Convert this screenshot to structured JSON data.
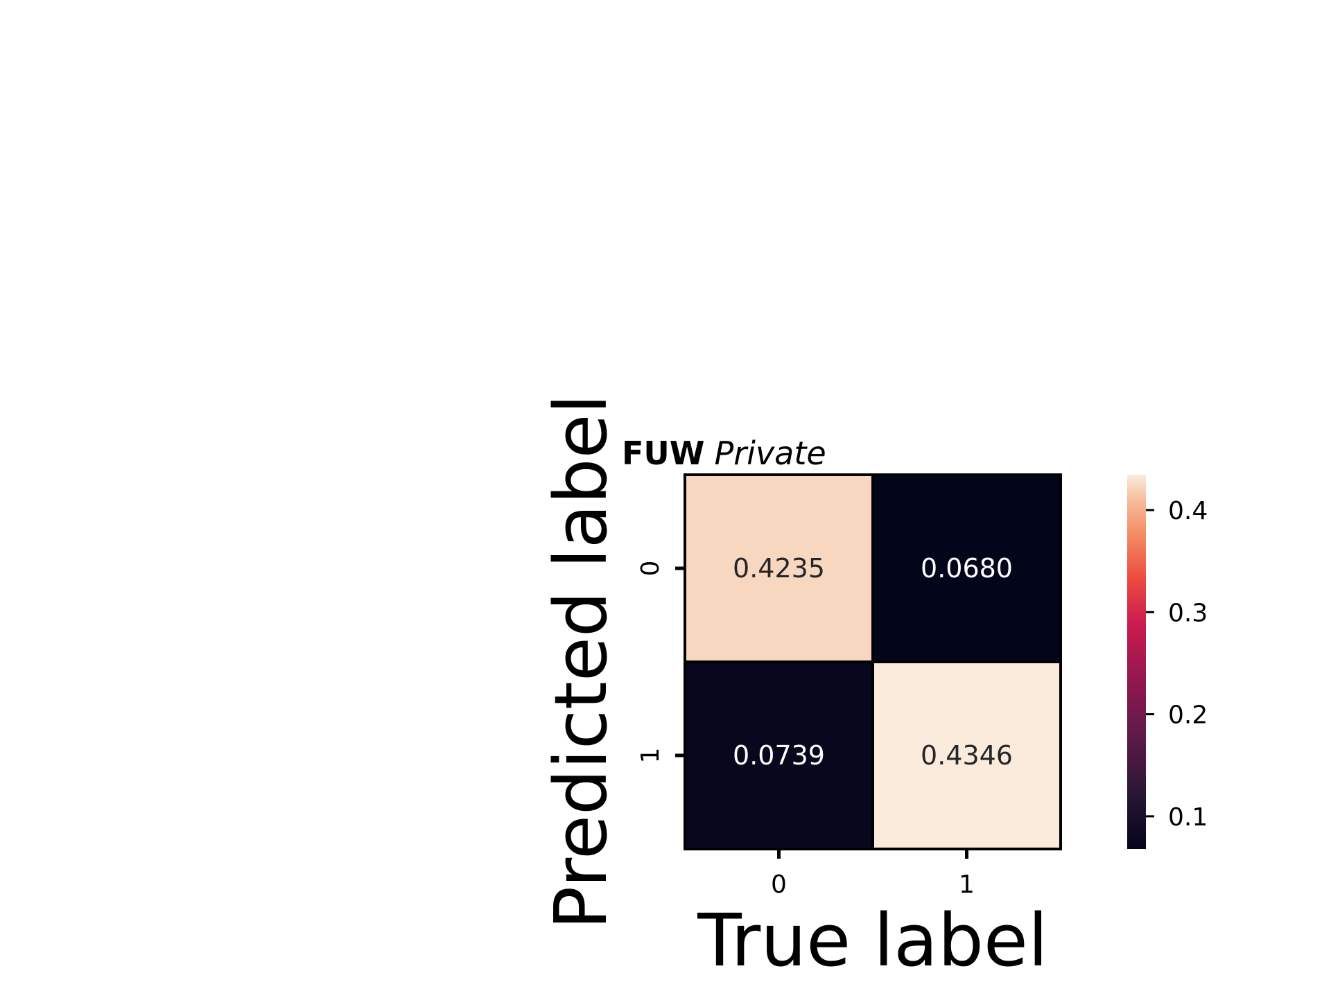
{
  "chart_data": {
    "type": "heatmap",
    "title_bold": "FUW",
    "title_italic": "Private",
    "xlabel": "True label",
    "ylabel": "Predicted label",
    "x_categories": [
      "0",
      "1"
    ],
    "y_categories": [
      "0",
      "1"
    ],
    "values": [
      [
        0.4235,
        0.068
      ],
      [
        0.0739,
        0.4346
      ]
    ],
    "cell_labels": [
      [
        "0.4235",
        "0.0680"
      ],
      [
        "0.0739",
        "0.4346"
      ]
    ],
    "colorbar": {
      "range": [
        0.068,
        0.4346
      ],
      "ticks": [
        0.1,
        0.2,
        0.3,
        0.4
      ],
      "tick_labels": [
        "0.1",
        "0.2",
        "0.3",
        "0.4"
      ]
    },
    "colormap": "rocket",
    "colors": {
      "low": "#03051a",
      "high": "#faebdd"
    }
  }
}
